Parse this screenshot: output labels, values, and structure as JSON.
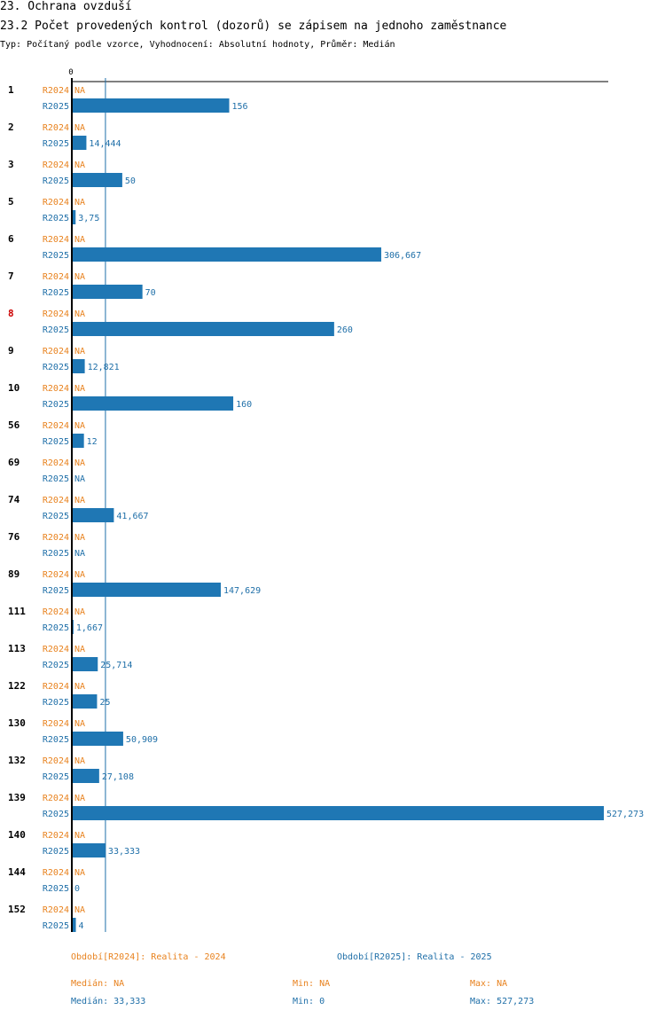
{
  "header": {
    "title": "23. Ochrana ovzduší",
    "subtitle": "23.2 Počet provedených kontrol (dozorů) se zápisem na jednoho zaměstnance",
    "meta": "Typ: Počítaný podle vzorce, Vyhodnocení: Absolutní hodnoty, Průměr: Medián"
  },
  "colors": {
    "r2024": "#e8821e",
    "r2025": "#1f77b4",
    "r2025_text": "#1f6fa8",
    "highlight": "#cc0000",
    "axis": "#000000",
    "median_line": "#1f6fa8"
  },
  "chart_data": {
    "type": "bar",
    "orientation": "horizontal",
    "axis_zero_label": "0",
    "xlim": [
      0,
      527.273
    ],
    "median_value": 33.333,
    "highlighted_category": "8",
    "series_names": [
      "R2024",
      "R2025"
    ],
    "categories": [
      "1",
      "2",
      "3",
      "5",
      "6",
      "7",
      "8",
      "9",
      "10",
      "56",
      "69",
      "74",
      "76",
      "89",
      "111",
      "113",
      "122",
      "130",
      "132",
      "139",
      "140",
      "144",
      "152"
    ],
    "series": [
      {
        "name": "R2024",
        "values": [
          null,
          null,
          null,
          null,
          null,
          null,
          null,
          null,
          null,
          null,
          null,
          null,
          null,
          null,
          null,
          null,
          null,
          null,
          null,
          null,
          null,
          null,
          null
        ],
        "labels": [
          "NA",
          "NA",
          "NA",
          "NA",
          "NA",
          "NA",
          "NA",
          "NA",
          "NA",
          "NA",
          "NA",
          "NA",
          "NA",
          "NA",
          "NA",
          "NA",
          "NA",
          "NA",
          "NA",
          "NA",
          "NA",
          "NA",
          "NA"
        ]
      },
      {
        "name": "R2025",
        "values": [
          156,
          14.444,
          50,
          3.75,
          306.667,
          70,
          260,
          12.821,
          160,
          12,
          null,
          41.667,
          null,
          147.629,
          1.667,
          25.714,
          25,
          50.909,
          27.108,
          527.273,
          33.333,
          0,
          4
        ],
        "labels": [
          "156",
          "14,444",
          "50",
          "3,75",
          "306,667",
          "70",
          "260",
          "12,821",
          "160",
          "12",
          "NA",
          "41,667",
          "NA",
          "147,629",
          "1,667",
          "25,714",
          "25",
          "50,909",
          "27,108",
          "527,273",
          "33,333",
          "0",
          "4"
        ]
      }
    ]
  },
  "legend": {
    "period_2024": "Období[R2024]: Realita - 2024",
    "period_2025": "Období[R2025]: Realita - 2025",
    "stats_2024": {
      "median": "Medián: NA",
      "min": "Min: NA",
      "max": "Max: NA"
    },
    "stats_2025": {
      "median": "Medián: 33,333",
      "min": "Min: 0",
      "max": "Max: 527,273"
    }
  }
}
